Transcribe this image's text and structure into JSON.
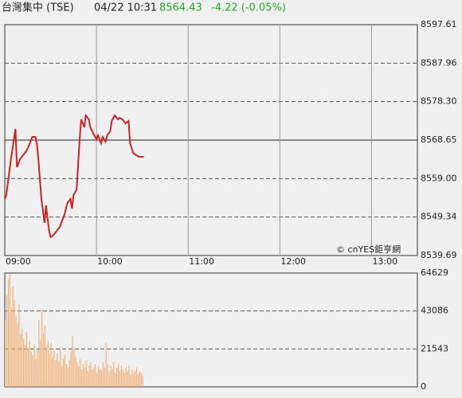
{
  "header": {
    "title": "台灣集中 (TSE)",
    "time": "04/22 10:31",
    "price": "8564.43",
    "change": "-4.22 (-0.05%)"
  },
  "chart_data": [
    {
      "type": "line",
      "color": "#cc2222",
      "annotation": "© cnYES鉅亨網",
      "x": [
        0,
        1,
        3,
        4,
        6,
        7,
        8,
        10,
        12,
        14,
        16,
        18,
        20,
        21,
        22,
        24,
        26,
        27,
        29,
        30,
        32,
        34,
        36,
        39,
        41,
        43,
        44,
        45,
        47,
        49,
        50,
        52,
        53,
        55,
        56,
        58,
        60,
        61,
        63,
        64,
        66,
        67,
        69,
        70,
        72,
        74,
        75,
        77,
        79,
        81,
        82,
        84,
        86,
        88,
        91
      ],
      "values": [
        8553.87,
        8554.87,
        8560.87,
        8563.86,
        8568.85,
        8571.45,
        8561.86,
        8563.86,
        8564.86,
        8565.86,
        8567.45,
        8569.45,
        8569.45,
        8567.85,
        8563.86,
        8553.87,
        8547.88,
        8552.27,
        8545.88,
        8544.29,
        8544.88,
        8545.88,
        8546.88,
        8549.88,
        8552.87,
        8553.87,
        8551.47,
        8554.87,
        8556.27,
        8568.85,
        8573.84,
        8571.85,
        8574.84,
        8573.84,
        8571.85,
        8570.25,
        8568.85,
        8569.85,
        8567.85,
        8569.45,
        8568.25,
        8569.85,
        8570.85,
        8573.44,
        8574.84,
        8573.84,
        8574.24,
        8573.84,
        8572.85,
        8573.44,
        8567.85,
        8565.45,
        8564.86,
        8564.46,
        8564.46
      ],
      "xlim": [
        0,
        270
      ],
      "xticks": [
        {
          "value": 0,
          "label": "09:00"
        },
        {
          "value": 60,
          "label": "10:00"
        },
        {
          "value": 120,
          "label": "11:00"
        },
        {
          "value": 180,
          "label": "12:00"
        },
        {
          "value": 240,
          "label": "13:00"
        }
      ],
      "ylim": [
        8539.69,
        8597.61
      ],
      "yticks": [
        8539.69,
        8549.34,
        {
          "value": 8559,
          "label": "8559.00"
        },
        8568.65,
        {
          "value": 8578.3,
          "label": "8578.30"
        },
        8587.96,
        8597.61
      ],
      "reference_line": 8568.65
    },
    {
      "type": "bar",
      "color": "#f2b27a",
      "x": [
        0,
        1,
        2,
        3,
        4,
        5,
        6,
        7,
        8,
        9,
        10,
        11,
        12,
        13,
        14,
        15,
        16,
        17,
        18,
        19,
        20,
        21,
        22,
        23,
        24,
        25,
        26,
        27,
        28,
        29,
        30,
        31,
        32,
        33,
        34,
        35,
        36,
        37,
        38,
        39,
        40,
        41,
        42,
        43,
        44,
        45,
        46,
        47,
        48,
        49,
        50,
        51,
        52,
        53,
        54,
        55,
        56,
        57,
        58,
        59,
        60,
        61,
        62,
        63,
        64,
        65,
        66,
        67,
        68,
        69,
        70,
        71,
        72,
        73,
        74,
        75,
        76,
        77,
        78,
        79,
        80,
        81,
        82,
        83,
        84,
        85,
        86,
        87,
        88,
        89,
        90
      ],
      "values": [
        38000,
        52000,
        61000,
        64000,
        45000,
        57000,
        49000,
        40000,
        36000,
        47000,
        30000,
        33000,
        27000,
        24000,
        31000,
        22000,
        26000,
        20000,
        18000,
        24000,
        16000,
        21000,
        38000,
        27000,
        44000,
        30000,
        35000,
        23000,
        26000,
        19000,
        25000,
        17000,
        21000,
        15000,
        19000,
        14000,
        22000,
        12000,
        16000,
        18000,
        13000,
        11000,
        15000,
        20000,
        29000,
        22000,
        17000,
        14000,
        12000,
        16000,
        10000,
        13000,
        11000,
        15000,
        9000,
        12000,
        14000,
        10000,
        11000,
        13000,
        8000,
        12000,
        10000,
        9000,
        14000,
        11000,
        25000,
        13000,
        9000,
        12000,
        10000,
        14000,
        8000,
        11000,
        13000,
        9000,
        12000,
        10000,
        8000,
        11000,
        9000,
        12000,
        7000,
        10000,
        8000,
        9000,
        11000,
        7000,
        9000,
        8000,
        6000
      ],
      "xlim": [
        0,
        270
      ],
      "ylim": [
        0,
        64629
      ],
      "yticks": [
        0,
        21543,
        43086,
        64629
      ]
    }
  ]
}
